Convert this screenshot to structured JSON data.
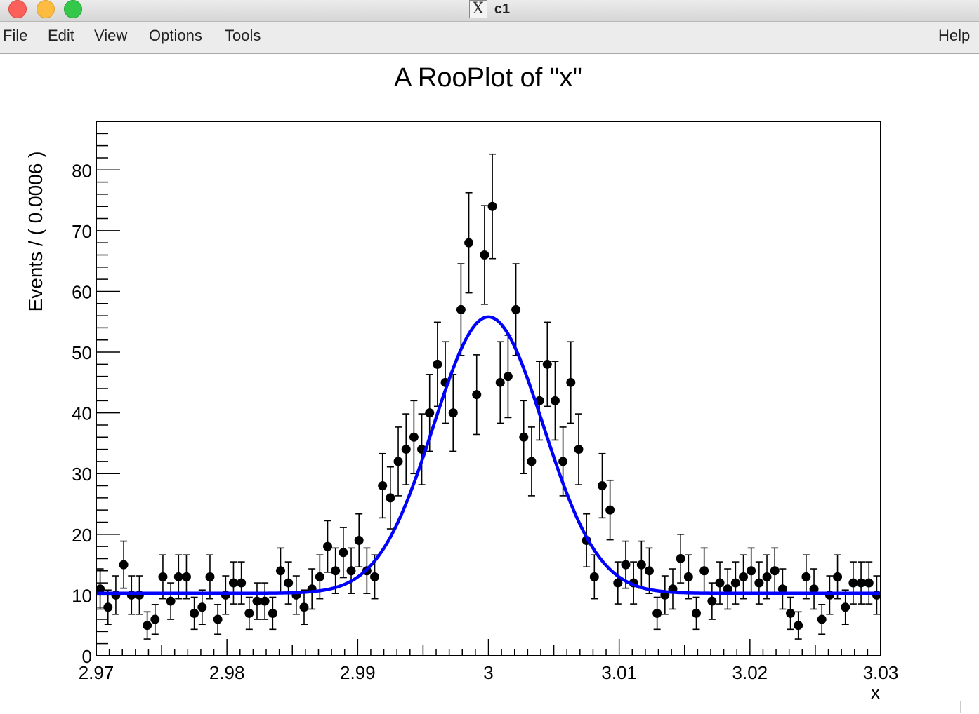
{
  "window": {
    "title": "c1",
    "icon": "x11-icon",
    "buttons": [
      "close",
      "minimize",
      "zoom"
    ]
  },
  "menubar": {
    "items": [
      "File",
      "Edit",
      "View",
      "Options",
      "Tools"
    ],
    "help": "Help"
  },
  "chart_data": {
    "type": "scatter",
    "title": "A RooPlot of \"x\"",
    "xlabel": "x",
    "ylabel": "Events / ( 0.0006 )",
    "xlim": [
      2.97,
      3.03
    ],
    "ylim": [
      0,
      88
    ],
    "xticks": [
      "2.97",
      "2.98",
      "2.99",
      "3",
      "3.01",
      "3.02",
      "3.03"
    ],
    "yticks": [
      "0",
      "10",
      "20",
      "30",
      "40",
      "50",
      "60",
      "70",
      "80"
    ],
    "grid": false,
    "series": [
      {
        "style": "points with error bars",
        "color": "#000000",
        "x": [
          2.9703,
          2.9709,
          2.9715,
          2.9721,
          2.9727,
          2.9733,
          2.9739,
          2.9745,
          2.9751,
          2.9757,
          2.9763,
          2.9769,
          2.9775,
          2.9781,
          2.9787,
          2.9793,
          2.9799,
          2.9805,
          2.9811,
          2.9817,
          2.9823,
          2.9829,
          2.9835,
          2.9841,
          2.9847,
          2.9853,
          2.9859,
          2.9865,
          2.9871,
          2.9877,
          2.9883,
          2.9889,
          2.9895,
          2.9901,
          2.9907,
          2.9913,
          2.9919,
          2.9925,
          2.9931,
          2.9937,
          2.9943,
          2.9949,
          2.9955,
          2.9961,
          2.9967,
          2.9973,
          2.9979,
          2.9985,
          2.9991,
          2.9997,
          3.0003,
          3.0009,
          3.0015,
          3.0021,
          3.0027,
          3.0033,
          3.0039,
          3.0045,
          3.0051,
          3.0057,
          3.0063,
          3.0069,
          3.0075,
          3.0081,
          3.0087,
          3.0093,
          3.0099,
          3.0105,
          3.0111,
          3.0117,
          3.0123,
          3.0129,
          3.0135,
          3.0141,
          3.0147,
          3.0153,
          3.0159,
          3.0165,
          3.0171,
          3.0177,
          3.0183,
          3.0189,
          3.0195,
          3.0201,
          3.0207,
          3.0213,
          3.0219,
          3.0225,
          3.0231,
          3.0237,
          3.0243,
          3.0249,
          3.0255,
          3.0261,
          3.0267,
          3.0273,
          3.0279,
          3.0285,
          3.0291,
          3.0297
        ],
        "y": [
          11,
          8,
          10,
          15,
          10,
          10,
          5,
          6,
          13,
          9,
          13,
          13,
          7,
          8,
          13,
          6,
          10,
          12,
          12,
          7,
          9,
          9,
          7,
          14,
          12,
          10,
          8,
          11,
          13,
          18,
          14,
          17,
          14,
          19,
          14,
          13,
          28,
          26,
          32,
          34,
          36,
          34,
          40,
          48,
          45,
          40,
          57,
          68,
          43,
          66,
          74,
          45,
          46,
          57,
          36,
          32,
          42,
          48,
          42,
          32,
          45,
          34,
          19,
          13,
          28,
          24,
          12,
          15,
          12,
          15,
          14,
          7,
          10,
          11,
          16,
          13,
          7,
          14,
          9,
          12,
          11,
          12,
          13,
          14,
          12,
          13,
          14,
          11,
          7,
          5,
          13,
          11,
          6,
          10,
          13,
          8,
          12,
          12,
          12,
          10
        ]
      },
      {
        "style": "fit curve",
        "color": "#0000ff",
        "model": "gaussian plus flat background",
        "peak": 55.8,
        "mean": 3.0,
        "sigma": 0.0042,
        "background": 10.3
      }
    ]
  }
}
